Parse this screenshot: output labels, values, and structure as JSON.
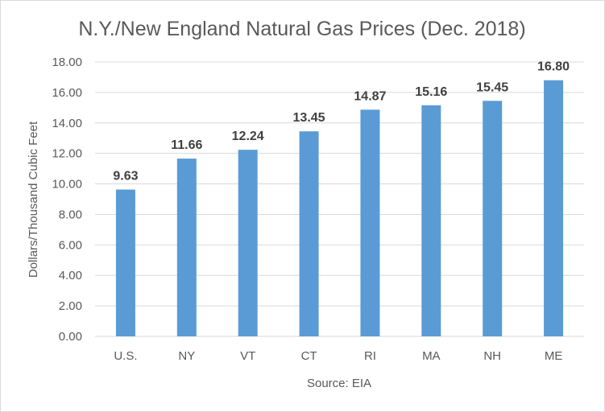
{
  "chart_data": {
    "type": "bar",
    "title": "N.Y./New England Natural Gas Prices (Dec. 2018)",
    "xlabel": "Source: EIA",
    "ylabel": "Dollars/Thousand Cubic Feet",
    "categories": [
      "U.S.",
      "NY",
      "VT",
      "CT",
      "RI",
      "MA",
      "NH",
      "ME"
    ],
    "values": [
      9.63,
      11.66,
      12.24,
      13.45,
      14.87,
      15.16,
      15.45,
      16.8
    ],
    "data_labels": [
      "9.63",
      "11.66",
      "12.24",
      "13.45",
      "14.87",
      "15.16",
      "15.45",
      "16.80"
    ],
    "ylim": [
      0,
      18
    ],
    "yticks": [
      "0.00",
      "2.00",
      "4.00",
      "6.00",
      "8.00",
      "10.00",
      "12.00",
      "14.00",
      "16.00",
      "18.00"
    ],
    "grid": true,
    "legend": "none",
    "bar_color": "#5b9bd5"
  }
}
